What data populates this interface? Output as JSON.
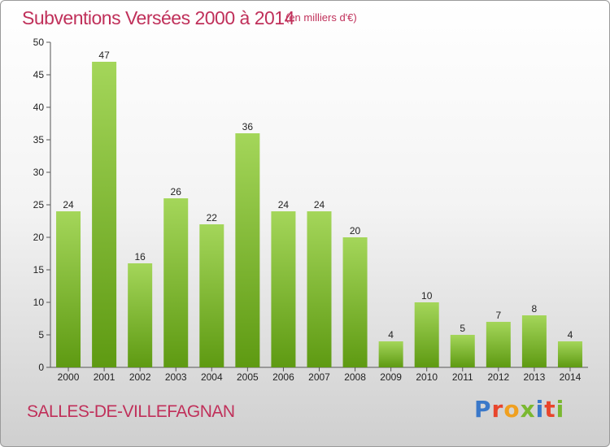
{
  "title": "Subventions Versées 2000 à 2014",
  "subtitle": "(en milliers d'€)",
  "commune": "SALLES-DE-VILLEFAGNAN",
  "logo": {
    "text": "Proxiti",
    "colors": [
      "#3a78c9",
      "#e8452c",
      "#f0a020",
      "#7ab830",
      "#3a78c9",
      "#e8452c",
      "#7ab830"
    ]
  },
  "colors": {
    "bar_light": "#a4d65a",
    "bar_dark": "#5e9a12",
    "title": "#c0305a"
  },
  "chart_data": {
    "type": "bar",
    "title": "Subventions Versées 2000 à 2014",
    "subtitle": "(en milliers d'€)",
    "categories": [
      "2000",
      "2001",
      "2002",
      "2003",
      "2004",
      "2005",
      "2006",
      "2007",
      "2008",
      "2009",
      "2010",
      "2011",
      "2012",
      "2013",
      "2014"
    ],
    "values": [
      24,
      47,
      16,
      26,
      22,
      36,
      24,
      24,
      20,
      4,
      10,
      5,
      7,
      8,
      4
    ],
    "ylim": [
      0,
      50
    ],
    "yticks": [
      0,
      5,
      10,
      15,
      20,
      25,
      30,
      35,
      40,
      45,
      50
    ],
    "grid": false
  }
}
